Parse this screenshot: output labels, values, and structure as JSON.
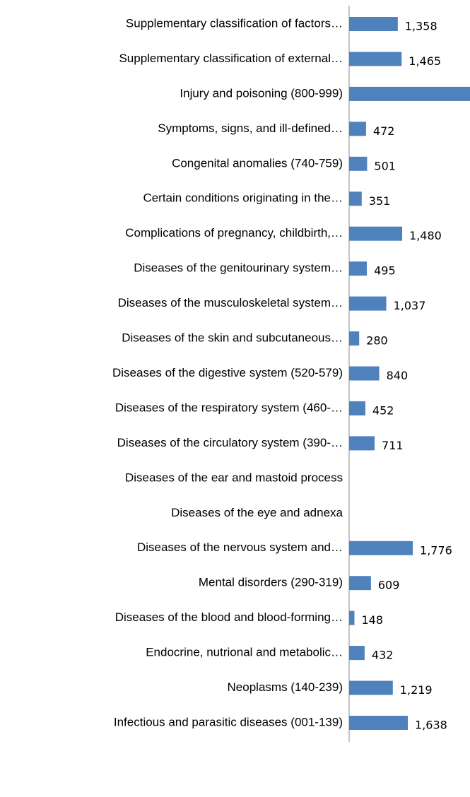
{
  "chart_data": {
    "type": "bar",
    "orientation": "horizontal",
    "color": "#4f81bd",
    "categories": [
      "Supplementary classification of factors…",
      "Supplementary classification of external…",
      "Injury and poisoning (800-999)",
      "Symptoms, signs, and ill-defined…",
      "Congenital anomalies (740-759)",
      "Certain conditions originating in the…",
      "Complications of pregnancy, childbirth,…",
      "Diseases of the genitourinary system…",
      "Diseases of the musculoskeletal system…",
      "Diseases of the skin and subcutaneous…",
      "Diseases of the digestive system (520-579)",
      "Diseases of the respiratory system (460-…",
      "Diseases of the circulatory system (390-…",
      "Diseases of the ear and mastoid process",
      "Diseases of the eye and adnexa",
      "Diseases of the nervous system and…",
      "Mental disorders (290-319)",
      "Diseases of the blood and blood-forming…",
      "Endocrine, nutrional and metabolic…",
      "Neoplasms (140-239)",
      "Infectious and parasitic diseases  (001-139)"
    ],
    "values": [
      1358,
      1465,
      3500,
      472,
      501,
      351,
      1480,
      495,
      1037,
      280,
      840,
      452,
      711,
      null,
      null,
      1776,
      609,
      148,
      432,
      1219,
      1638
    ],
    "value_labels": [
      "1,358",
      "1,465",
      null,
      "472",
      "501",
      "351",
      "1,480",
      "495",
      "1,037",
      "280",
      "840",
      "452",
      "711",
      null,
      null,
      "1,776",
      "609",
      "148",
      "432",
      "1,219",
      "1,638"
    ]
  }
}
